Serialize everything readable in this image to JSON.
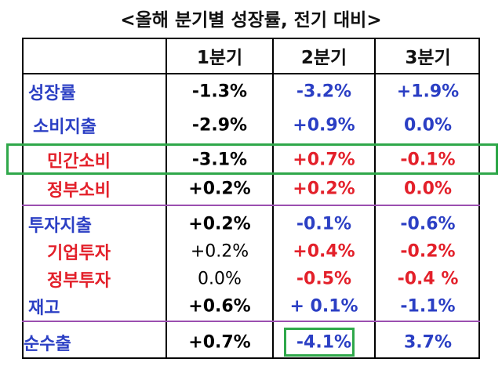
{
  "title": "<올해 분기별 성장률, 전기 대비>",
  "table": {
    "header": [
      "1분기",
      "2분기",
      "3분기"
    ],
    "rows": [
      {
        "label": "성장률",
        "color": "#2b3fc4",
        "values": [
          "-1.3%",
          "-3.2%",
          "+1.9%"
        ]
      },
      {
        "label": "소비지출",
        "color": "#2b3fc4",
        "values": [
          "-2.9%",
          "+0.9%",
          "0.0%"
        ]
      },
      {
        "label": "민간소비",
        "color": "#e3202a",
        "values": [
          "-3.1%",
          "+0.7%",
          "-0.1%"
        ]
      },
      {
        "label": "정부소비",
        "color": "#e3202a",
        "values": [
          "+0.2%",
          "+0.2%",
          "0.0%"
        ]
      },
      {
        "label": "투자지출",
        "color": "#2b3fc4",
        "values": [
          "+0.2%",
          "-0.1%",
          "-0.6%"
        ]
      },
      {
        "label": "기업투자",
        "color": "#e3202a",
        "values": [
          "+0.2%",
          "+0.4%",
          "-0.2%"
        ]
      },
      {
        "label": "정부투자",
        "color": "#e3202a",
        "values": [
          "0.0%",
          "-0.5%",
          "-0.4 %"
        ]
      },
      {
        "label": "재고",
        "color": "#2b3fc4",
        "values": [
          "+0.6%",
          "+ 0.1%",
          "-1.1%"
        ]
      },
      {
        "label": "순수출",
        "color": "#2b3fc4",
        "values": [
          "+0.7%",
          "-4.1%",
          "3.7%"
        ]
      }
    ]
  }
}
